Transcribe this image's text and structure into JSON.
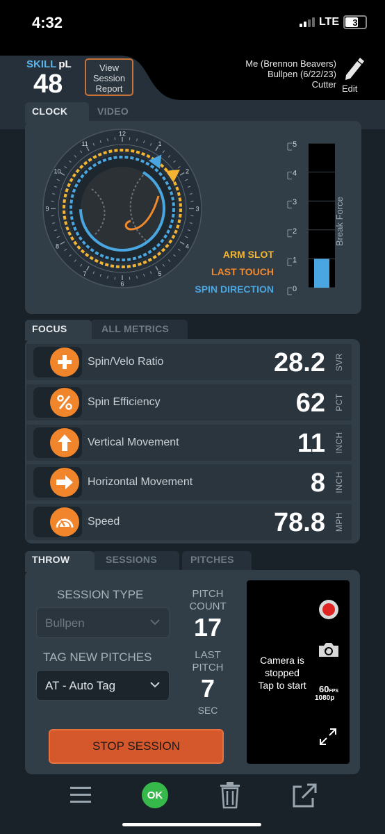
{
  "status_bar": {
    "time": "4:32",
    "network": "LTE",
    "battery": "3"
  },
  "header": {
    "skill_label_a": "SKILL",
    "skill_label_b": "pL",
    "skill_value": "48",
    "view_report_line1": "View",
    "view_report_line2": "Session",
    "view_report_line3": "Report",
    "user_line": "Me (Brennon Beavers)",
    "session_line": "Bullpen (6/22/23)",
    "pitch_type": "Cutter",
    "edit_label": "Edit"
  },
  "clock_tabs": {
    "active": "CLOCK",
    "inactive": "VIDEO"
  },
  "clock": {
    "hours": [
      "12",
      "1",
      "2",
      "3",
      "4",
      "5",
      "6",
      "7",
      "8",
      "9",
      "10",
      "11"
    ],
    "legend": {
      "arm_slot": "ARM SLOT",
      "last_touch": "LAST TOUCH",
      "spin_direction": "SPIN DIRECTION"
    },
    "colors": {
      "arm_slot": "#f2b431",
      "last_touch": "#f08a2c",
      "spin_direction": "#4aa6e0"
    },
    "break_force": {
      "label": "Break Force",
      "ticks": [
        "5",
        "4",
        "3",
        "2",
        "1",
        "0"
      ],
      "value": 1,
      "max": 5
    }
  },
  "focus_tabs": {
    "active": "FOCUS",
    "inactive": "ALL METRICS"
  },
  "metrics": [
    {
      "label": "Spin/Velo Ratio",
      "value": "28.2",
      "unit": "SVR",
      "icon": "plus-icon"
    },
    {
      "label": "Spin Efficiency",
      "value": "62",
      "unit": "PCT",
      "icon": "percent-icon"
    },
    {
      "label": "Vertical Movement",
      "value": "11",
      "unit": "INCH",
      "icon": "arrow-up-icon"
    },
    {
      "label": "Horizontal Movement",
      "value": "8",
      "unit": "INCH",
      "icon": "arrow-right-icon"
    },
    {
      "label": "Speed",
      "value": "78.8",
      "unit": "MPH",
      "icon": "speedometer-icon"
    }
  ],
  "throw_tabs": {
    "active": "THROW",
    "tab2": "SESSIONS",
    "tab3": "PITCHES"
  },
  "throw": {
    "session_type_label": "SESSION TYPE",
    "session_type_value": "Bullpen",
    "tag_label": "TAG NEW PITCHES",
    "tag_value": "AT - Auto Tag",
    "pitch_count_label_1": "PITCH",
    "pitch_count_label_2": "COUNT",
    "pitch_count": "17",
    "last_pitch_label_1": "LAST",
    "last_pitch_label_2": "PITCH",
    "last_pitch_value": "7",
    "last_pitch_unit": "SEC",
    "stop_label": "STOP SESSION",
    "camera_msg_1": "Camera is",
    "camera_msg_2": "stopped",
    "camera_msg_3": "Tap to start",
    "fps": "60",
    "fps_unit": "FPS",
    "resolution": "1080p"
  },
  "bottom_bar": {
    "ok_label": "OK"
  }
}
